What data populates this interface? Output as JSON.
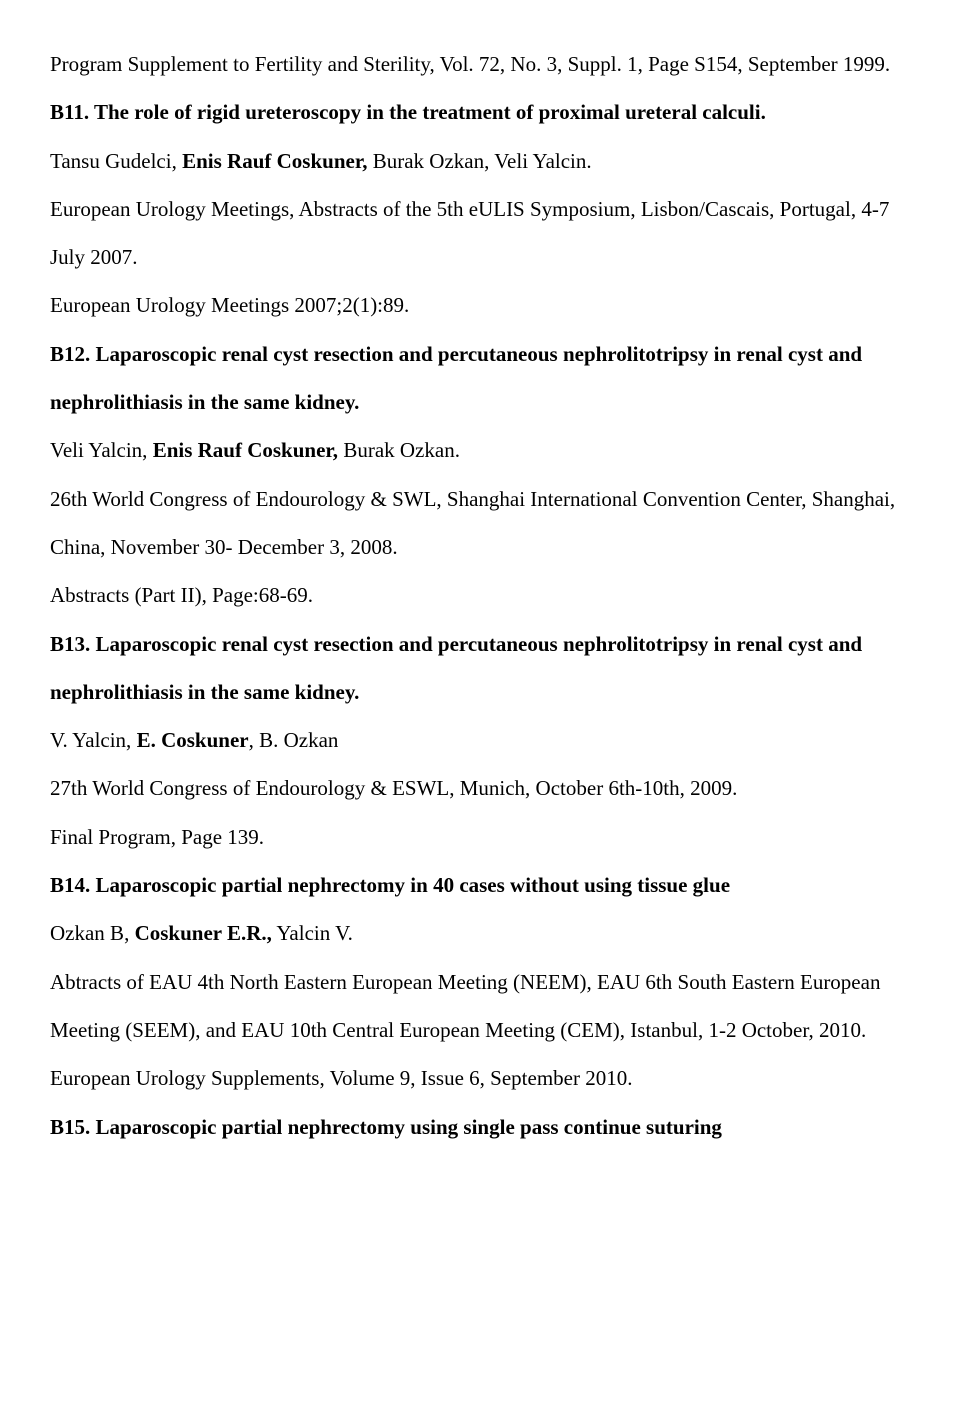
{
  "p1": "Program Supplement to Fertility and Sterility, Vol. 72, No. 3, Suppl. 1, Page S154, September 1999.",
  "p2": "B11. The role of rigid ureteroscopy in the treatment of proximal ureteral calculi.",
  "p3a": "Tansu Gudelci, ",
  "p3b": "Enis Rauf Coskuner,",
  "p3c": " Burak Ozkan, Veli Yalcin.",
  "p4": "European Urology Meetings, Abstracts of the 5th eULIS Symposium, Lisbon/Cascais, Portugal, 4-7 July 2007.",
  "p5": "European Urology Meetings 2007;2(1):89.",
  "p6": "B12. Laparoscopic renal cyst resection and percutaneous nephrolitotripsy in renal cyst and nephrolithiasis in the same kidney.",
  "p7a": "Veli Yalcin, ",
  "p7b": "Enis Rauf Coskuner,",
  "p7c": " Burak Ozkan.",
  "p8": "26th World Congress of Endourology & SWL, Shanghai International Convention Center, Shanghai, China, November 30- December 3, 2008.",
  "p9": "Abstracts (Part II), Page:68-69.",
  "p10": "B13. Laparoscopic renal cyst resection and percutaneous nephrolitotripsy in renal cyst and nephrolithiasis in the same kidney.",
  "p11a": "V. Yalcin, ",
  "p11b": "E. Coskuner",
  "p11c": ", B. Ozkan",
  "p12": "27th World Congress of Endourology & ESWL, Munich, October 6th-10th, 2009.",
  "p13": "Final Program, Page 139.",
  "p14": "B14. Laparoscopic partial nephrectomy in 40 cases without using tissue glue",
  "p15a": "Ozkan B, ",
  "p15b": "Coskuner E.R.,",
  "p15c": " Yalcin V.",
  "p16": "Abtracts of EAU 4th North Eastern European Meeting (NEEM), EAU 6th South Eastern European Meeting (SEEM), and EAU 10th Central European Meeting (CEM), Istanbul, 1-2 October, 2010.",
  "p17": "European Urology Supplements, Volume 9, Issue 6, September 2010.",
  "p18": "B15. Laparoscopic partial nephrectomy using single pass continue suturing"
}
